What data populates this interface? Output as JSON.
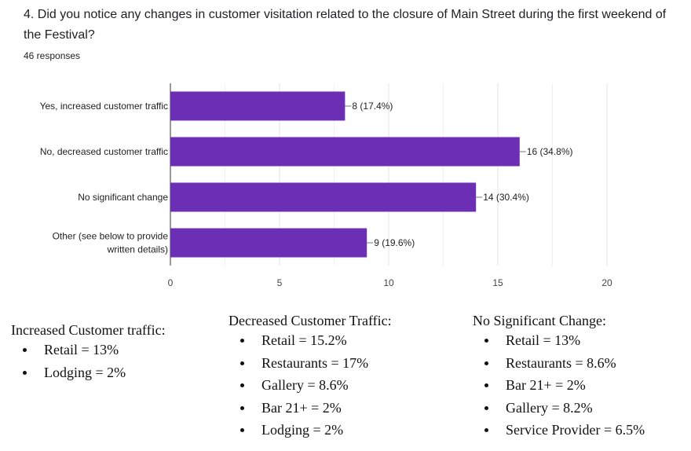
{
  "question": "4. Did you notice any changes in customer visitation related to the closure of Main Street during the first weekend of the Festival?",
  "responses": "46 responses",
  "chart_data": {
    "type": "bar",
    "orientation": "horizontal",
    "categories": [
      "Yes, increased customer traffic",
      "No, decreased customer traffic",
      "No significant change",
      "Other (see below to provide|written details)"
    ],
    "values": [
      8,
      16,
      14,
      9
    ],
    "data_labels": [
      "8 (17.4%)",
      "16 (34.8%)",
      "14 (30.4%)",
      "9 (19.6%)"
    ],
    "xlim": [
      0,
      20
    ],
    "xticks": [
      "0",
      "5",
      "10",
      "15",
      "20"
    ],
    "bar_color": "#6c2eb5",
    "grid": true
  },
  "notes": [
    {
      "heading": "Increased Customer traffic:",
      "items": [
        "Retail = 13%",
        "Lodging = 2%"
      ]
    },
    {
      "heading": "Decreased Customer Traffic:",
      "items": [
        "Retail = 15.2%",
        "Restaurants = 17%",
        "Gallery = 8.6%",
        "Bar 21+ = 2%",
        "Lodging = 2%"
      ]
    },
    {
      "heading": "No Significant Change:",
      "items": [
        "Retail =  13%",
        "Restaurants = 8.6%",
        "Bar 21+ = 2%",
        "Gallery = 8.2%",
        "Service Provider = 6.5%"
      ]
    }
  ]
}
